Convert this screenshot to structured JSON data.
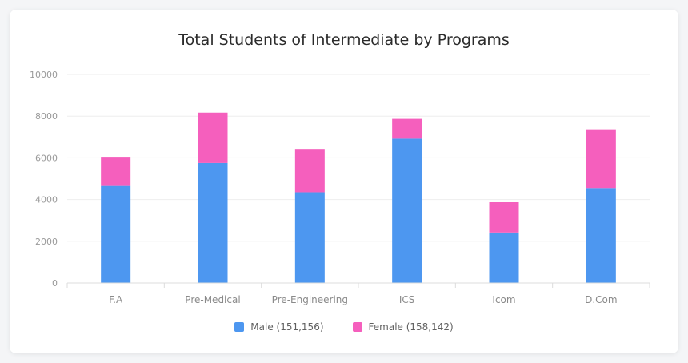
{
  "colors": {
    "male": "#4d97f0",
    "female": "#f55fbd",
    "grid": "#eeeeee",
    "axis_text": "#9a9a9a",
    "category_text": "#8a8a8a"
  },
  "legend": {
    "male_label": "Male (151,156)",
    "female_label": "Female (158,142)"
  },
  "chart_data": {
    "type": "bar",
    "stacked": true,
    "title": "Total Students of Intermediate by Programs",
    "xlabel": "",
    "ylabel": "",
    "ylim": [
      0,
      10000
    ],
    "yticks": [
      0,
      2000,
      4000,
      6000,
      8000,
      10000
    ],
    "grid": true,
    "legend_position": "bottom-center",
    "categories": [
      "F.A",
      "Pre-Medical",
      "Pre-Engineering",
      "ICS",
      "Icom",
      "D.Com"
    ],
    "series": [
      {
        "name": "Male (151,156)",
        "values": [
          4650,
          5750,
          4350,
          6920,
          2420,
          4550
        ]
      },
      {
        "name": "Female (158,142)",
        "values": [
          1400,
          2420,
          2080,
          950,
          1450,
          2820
        ]
      }
    ]
  }
}
